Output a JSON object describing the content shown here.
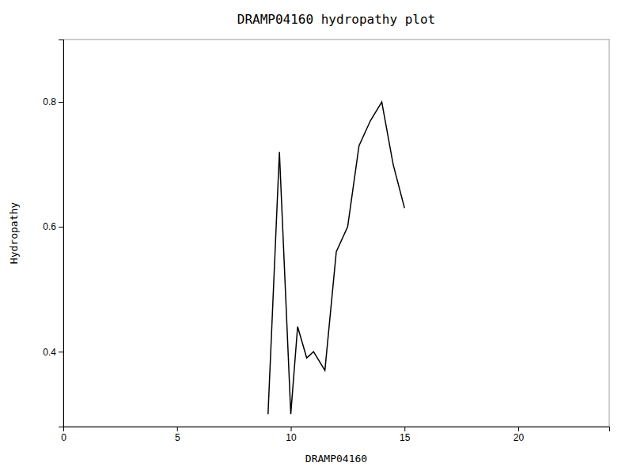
{
  "chart_data": {
    "type": "line",
    "title": "DRAMP04160 hydropathy plot",
    "xlabel": "DRAMP04160",
    "ylabel": "Hydropathy",
    "x": [
      9.0,
      9.5,
      10.0,
      10.3,
      10.7,
      11.0,
      11.5,
      12.0,
      12.5,
      13.0,
      13.5,
      14.0,
      14.5,
      15.0
    ],
    "values": [
      0.3,
      0.72,
      0.3,
      0.44,
      0.39,
      0.4,
      0.37,
      0.56,
      0.6,
      0.73,
      0.77,
      0.8,
      0.7,
      0.63
    ],
    "color": "#000000",
    "xlim": [
      0,
      24
    ],
    "ylim": [
      0.28,
      0.9
    ],
    "xticks": [
      0,
      5,
      10,
      15,
      20
    ],
    "yticks": [
      0.4,
      0.6,
      0.8
    ]
  }
}
